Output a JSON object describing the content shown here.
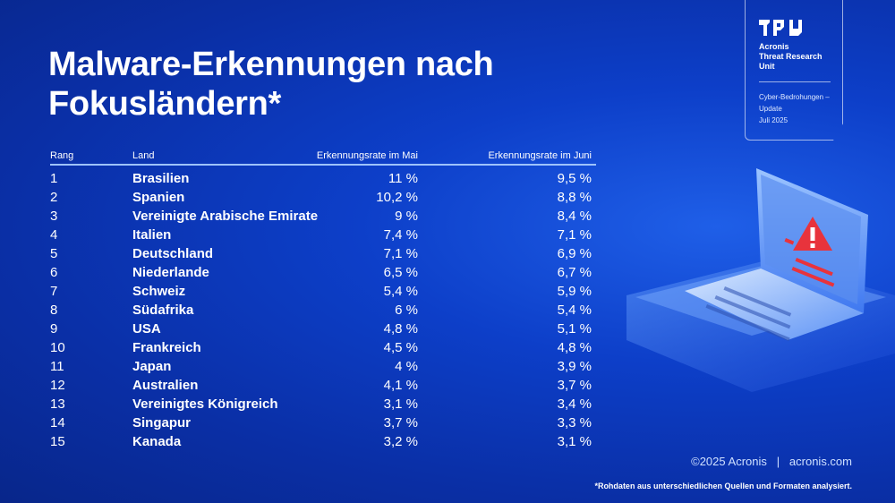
{
  "title": {
    "line1": "Malware-Erkennungen nach",
    "line2": "Fokusländern*"
  },
  "badge": {
    "logo_icon": "tru-logo-icon",
    "unit_line1": "Acronis",
    "unit_line2": "Threat Research",
    "unit_line3": "Unit",
    "update_line1": "Cyber-Bedrohungen –",
    "update_line2": "Update",
    "update_line3": "Juli 2025"
  },
  "table": {
    "headers": {
      "rang": "Rang",
      "land": "Land",
      "mai": "Erkennungsrate im Mai",
      "juni": "Erkennungsrate im Juni"
    },
    "rows": [
      {
        "rang": "1",
        "land": "Brasilien",
        "mai": "11 %",
        "juni": "9,5 %"
      },
      {
        "rang": "2",
        "land": "Spanien",
        "mai": "10,2 %",
        "juni": "8,8 %"
      },
      {
        "rang": "3",
        "land": "Vereinigte Arabische Emirate",
        "mai": "9 %",
        "juni": "8,4 %"
      },
      {
        "rang": "4",
        "land": "Italien",
        "mai": "7,4 %",
        "juni": "7,1 %"
      },
      {
        "rang": "5",
        "land": "Deutschland",
        "mai": "7,1 %",
        "juni": "6,9 %"
      },
      {
        "rang": "6",
        "land": "Niederlande",
        "mai": "6,5 %",
        "juni": "6,7 %"
      },
      {
        "rang": "7",
        "land": "Schweiz",
        "mai": "5,4 %",
        "juni": "5,9 %"
      },
      {
        "rang": "8",
        "land": "Südafrika",
        "mai": "6 %",
        "juni": "5,4 %"
      },
      {
        "rang": "9",
        "land": "USA",
        "mai": "4,8 %",
        "juni": "5,1 %"
      },
      {
        "rang": "10",
        "land": "Frankreich",
        "mai": "4,5 %",
        "juni": "4,8 %"
      },
      {
        "rang": "11",
        "land": "Japan",
        "mai": "4 %",
        "juni": "3,9 %"
      },
      {
        "rang": "12",
        "land": "Australien",
        "mai": "4,1 %",
        "juni": "3,7 %"
      },
      {
        "rang": "13",
        "land": "Vereinigtes Königreich",
        "mai": "3,1 %",
        "juni": "3,4 %"
      },
      {
        "rang": "14",
        "land": "Singapur",
        "mai": "3,7 %",
        "juni": "3,3 %"
      },
      {
        "rang": "15",
        "land": "Kanada",
        "mai": "3,2 %",
        "juni": "3,1 %"
      }
    ]
  },
  "illustration": {
    "icon": "laptop-warning-icon",
    "accent": "#e8333c"
  },
  "footer": {
    "copyright": "©2025 Acronis   |   acronis.com",
    "footnote": "*Rohdaten aus unterschiedlichen Quellen und Formaten analysiert."
  }
}
